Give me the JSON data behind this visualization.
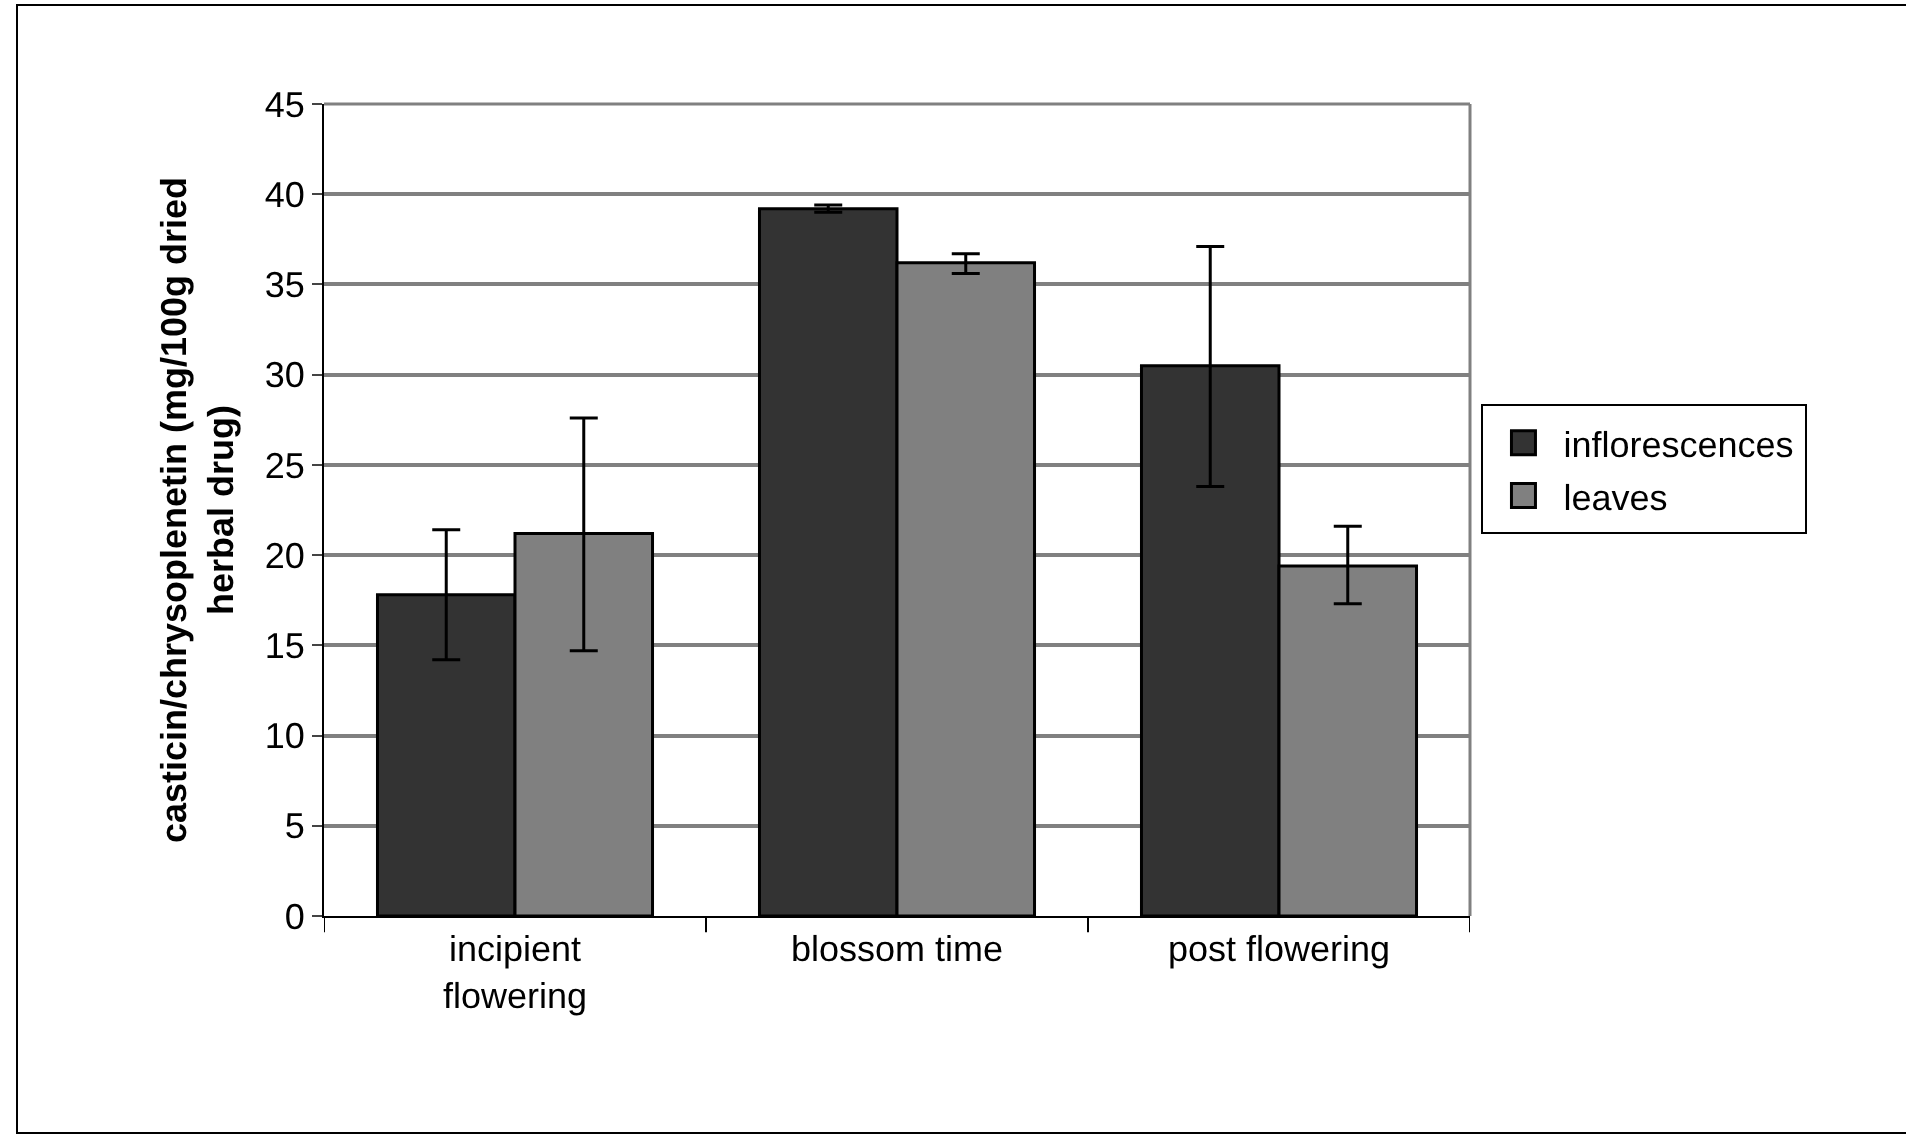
{
  "chart_data": {
    "type": "bar",
    "ylabel": "casticin/chrysoplenetin (mg/100g dried herbal drug)",
    "categories": [
      "incipient flowering",
      "blossom time",
      "post flowering"
    ],
    "series": [
      {
        "name": "inflorescences",
        "color": "#333333",
        "values": [
          17.8,
          39.2,
          30.5
        ],
        "errors": [
          [
            14.2,
            21.4
          ],
          [
            39.0,
            39.4
          ],
          [
            23.8,
            37.1
          ]
        ]
      },
      {
        "name": "leaves",
        "color": "#808080",
        "values": [
          21.2,
          36.2,
          19.4
        ],
        "errors": [
          [
            14.7,
            27.6
          ],
          [
            35.6,
            36.7
          ],
          [
            17.3,
            21.6
          ]
        ]
      }
    ],
    "ylim": [
      0,
      45
    ],
    "yticks": [
      0,
      5,
      10,
      15,
      20,
      25,
      30,
      35,
      40,
      45
    ],
    "grid": "y",
    "legend": "right"
  }
}
